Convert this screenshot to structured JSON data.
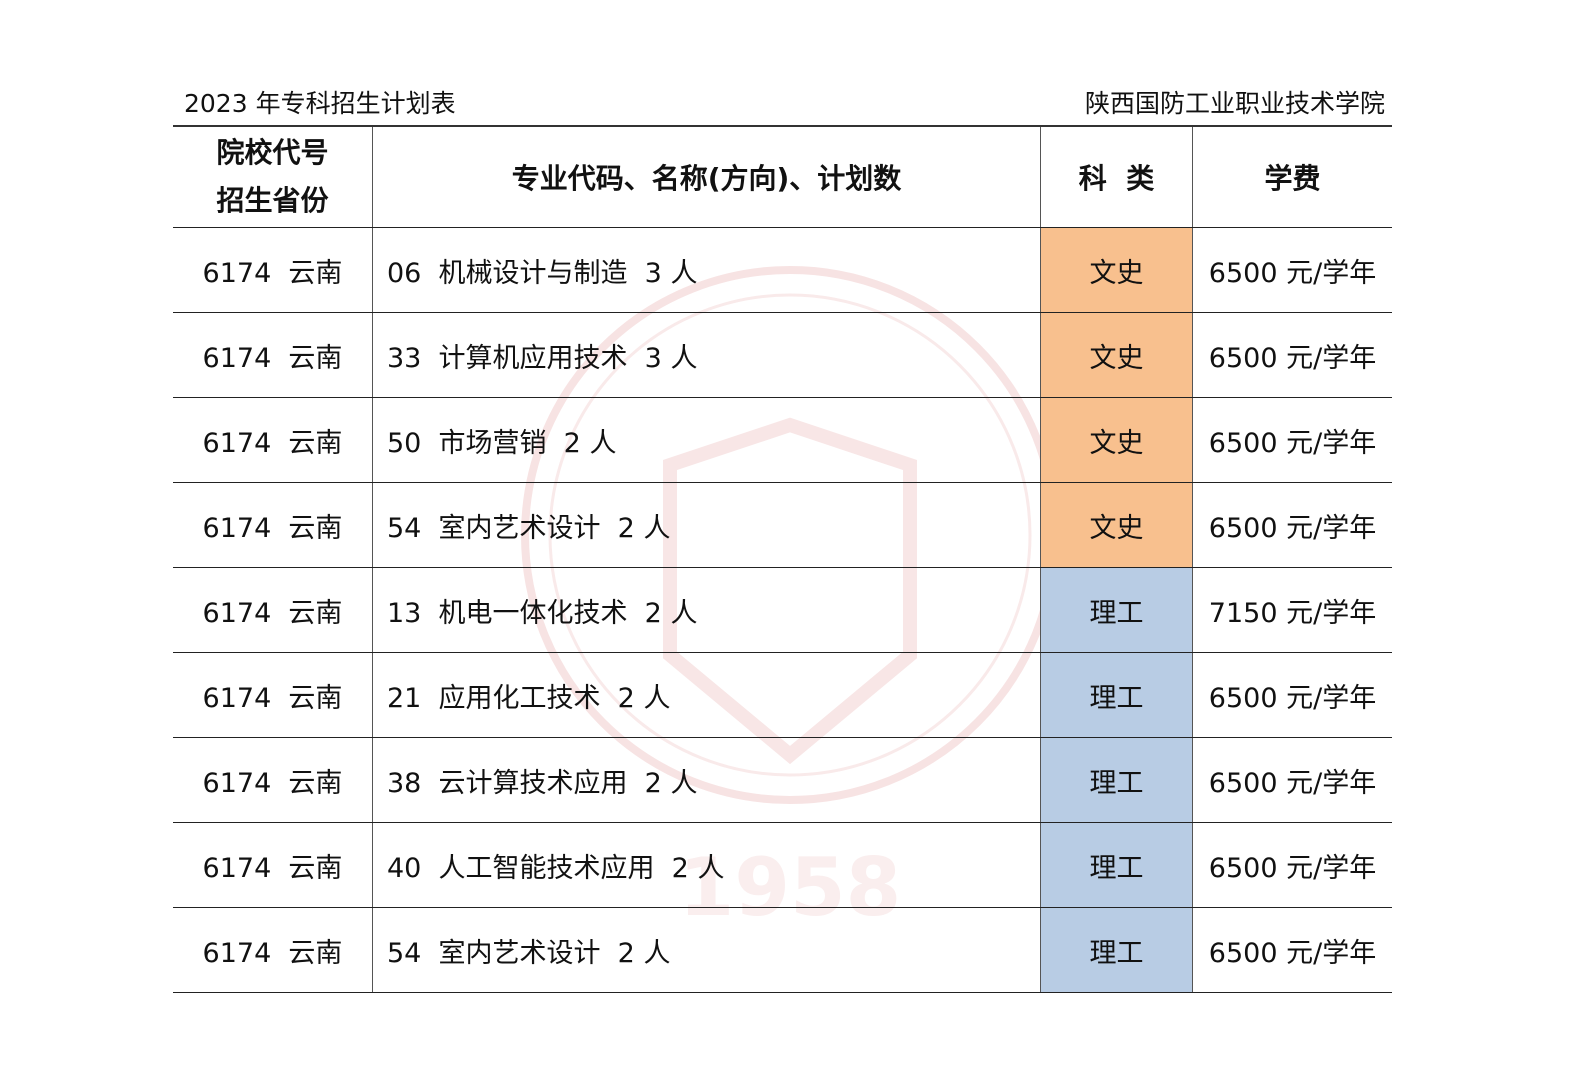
{
  "header": {
    "title": "2023 年专科招生计划表",
    "school": "陕西国防工业职业技术学院"
  },
  "columns": {
    "code_province_line1": "院校代号",
    "code_province_line2": "招生省份",
    "major": "专业代码、名称(方向)、计划数",
    "category": "科  类",
    "fee": "学费"
  },
  "colors": {
    "文史": "#F8C08E",
    "理工": "#B8CCE4"
  },
  "rows": [
    {
      "code_province": "6174  云南",
      "major": "06  机械设计与制造  3 人",
      "category": "文史",
      "fee": "6500 元/学年"
    },
    {
      "code_province": "6174  云南",
      "major": "33  计算机应用技术  3 人",
      "category": "文史",
      "fee": "6500 元/学年"
    },
    {
      "code_province": "6174  云南",
      "major": "50  市场营销  2 人",
      "category": "文史",
      "fee": "6500 元/学年"
    },
    {
      "code_province": "6174  云南",
      "major": "54  室内艺术设计  2 人",
      "category": "文史",
      "fee": "6500 元/学年"
    },
    {
      "code_province": "6174  云南",
      "major": "13  机电一体化技术  2 人",
      "category": "理工",
      "fee": "7150 元/学年"
    },
    {
      "code_province": "6174  云南",
      "major": "21  应用化工技术  2 人",
      "category": "理工",
      "fee": "6500 元/学年"
    },
    {
      "code_province": "6174  云南",
      "major": "38  云计算技术应用  2 人",
      "category": "理工",
      "fee": "6500 元/学年"
    },
    {
      "code_province": "6174  云南",
      "major": "40  人工智能技术应用  2 人",
      "category": "理工",
      "fee": "6500 元/学年"
    },
    {
      "code_province": "6174  云南",
      "major": "54  室内艺术设计  2 人",
      "category": "理工",
      "fee": "6500 元/学年"
    }
  ]
}
